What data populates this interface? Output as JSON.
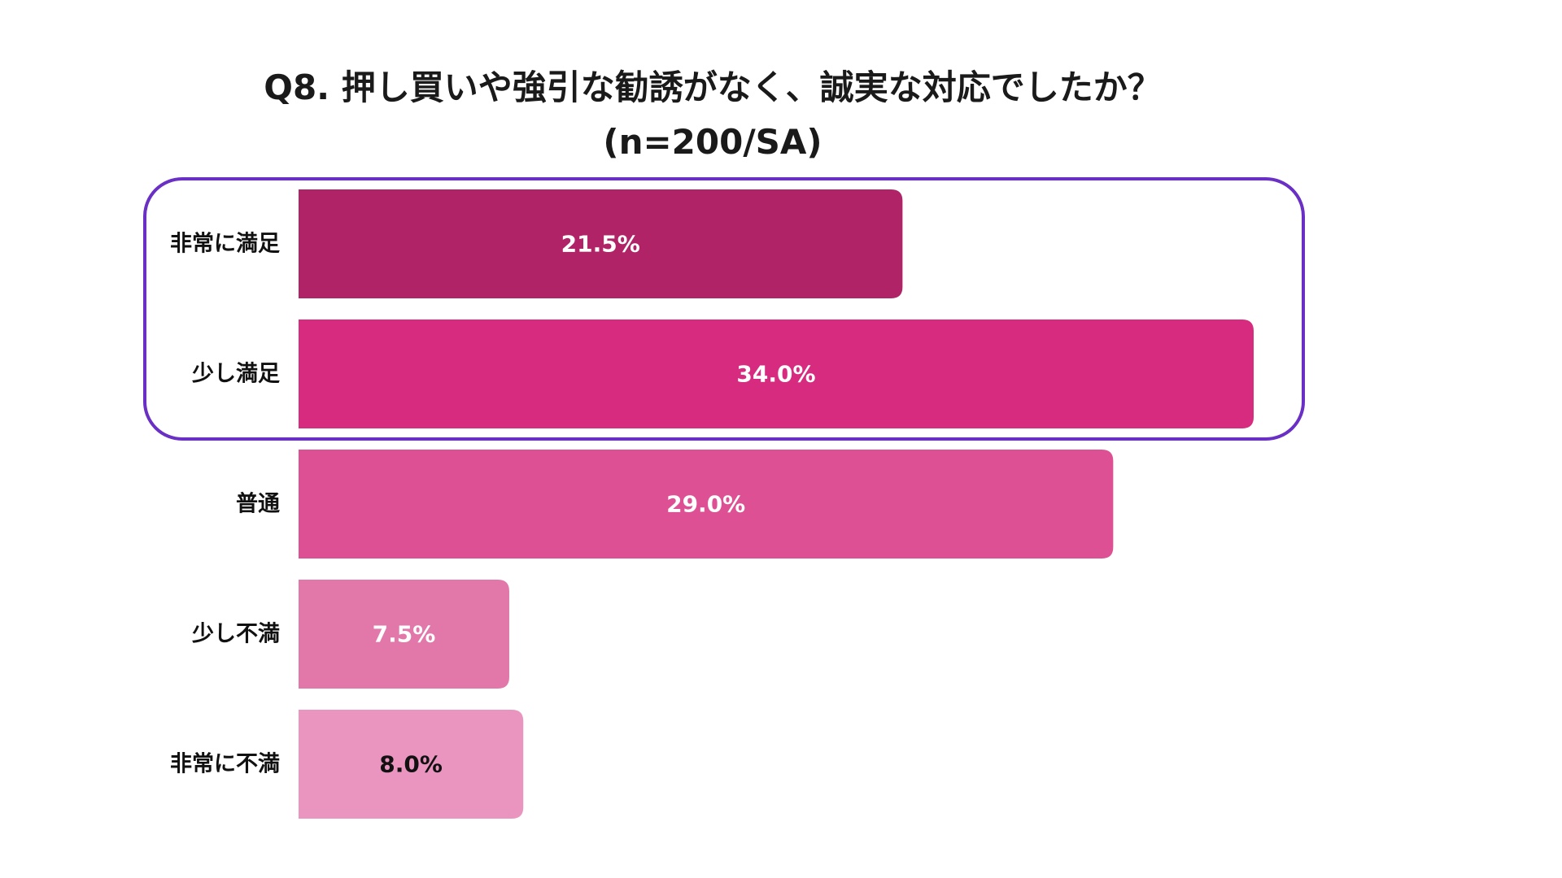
{
  "title_line1": "Q8. 押し買いや強引な勧誘がなく、誠実な対応でしたか？",
  "title_line2": "(n=200/SA)",
  "chart_data": {
    "type": "bar",
    "orientation": "horizontal",
    "title": "Q8. 押し買いや強引な勧誘がなく、誠実な対応でしたか？ (n=200/SA)",
    "categories": [
      "非常に満足",
      "少し満足",
      "普通",
      "少し不満",
      "非常に不満"
    ],
    "values": [
      21.5,
      34.0,
      29.0,
      7.5,
      8.0
    ],
    "value_labels": [
      "21.5%",
      "34.0%",
      "29.0%",
      "7.5%",
      "8.0%"
    ],
    "unit": "%",
    "xlim": [
      0,
      34.0
    ],
    "bar_colors": [
      "#b02467",
      "#d62b7f",
      "#dd5093",
      "#e277aa",
      "#e995c0"
    ],
    "label_colors": [
      "#ffffff",
      "#ffffff",
      "#ffffff",
      "#ffffff",
      "#111111"
    ],
    "highlight": {
      "categories": [
        "非常に満足",
        "少し満足"
      ],
      "color": "#6a2fc4"
    },
    "grid": false,
    "legend": "none"
  }
}
